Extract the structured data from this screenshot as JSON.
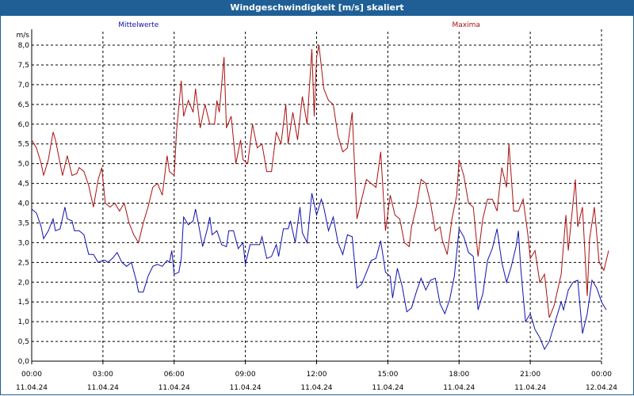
{
  "window": {
    "title": "Windgeschwindigkeit [m/s] skaliert"
  },
  "chart_data": {
    "type": "line",
    "title": "Windgeschwindigkeit [m/s] skaliert",
    "ylabel": "m/s",
    "ylim": [
      0,
      8.0
    ],
    "yticks": [
      "0,0",
      "0,5",
      "1,0",
      "1,5",
      "2,0",
      "2,5",
      "3,0",
      "3,5",
      "4,0",
      "4,5",
      "5,0",
      "5,5",
      "6,0",
      "6,5",
      "7,0",
      "7,5",
      "8,0"
    ],
    "xlim_hours": [
      0,
      24
    ],
    "xticks": [
      {
        "time": "00:00",
        "date": "11.04.24"
      },
      {
        "time": "03:00",
        "date": "11.04.24"
      },
      {
        "time": "06:00",
        "date": "11.04.24"
      },
      {
        "time": "09:00",
        "date": "11.04.24"
      },
      {
        "time": "12:00",
        "date": "11.04.24"
      },
      {
        "time": "15:00",
        "date": "11.04.24"
      },
      {
        "time": "18:00",
        "date": "11.04.24"
      },
      {
        "time": "21:00",
        "date": "11.04.24"
      },
      {
        "time": "00:00",
        "date": "12.04.24"
      }
    ],
    "grid": true,
    "legend_position": "top",
    "series": [
      {
        "name": "Mittelwerte",
        "color": "#1010b0",
        "points": [
          [
            0,
            3.85
          ],
          [
            0.2,
            3.75
          ],
          [
            0.4,
            3.4
          ],
          [
            0.5,
            3.1
          ],
          [
            0.7,
            3.3
          ],
          [
            0.9,
            3.6
          ],
          [
            1.0,
            3.3
          ],
          [
            1.2,
            3.35
          ],
          [
            1.4,
            3.9
          ],
          [
            1.5,
            3.6
          ],
          [
            1.7,
            3.55
          ],
          [
            1.8,
            3.3
          ],
          [
            2.0,
            3.3
          ],
          [
            2.2,
            3.2
          ],
          [
            2.4,
            2.7
          ],
          [
            2.6,
            2.7
          ],
          [
            2.8,
            2.5
          ],
          [
            3.0,
            2.55
          ],
          [
            3.1,
            2.55
          ],
          [
            3.2,
            2.5
          ],
          [
            3.4,
            2.6
          ],
          [
            3.6,
            2.75
          ],
          [
            3.8,
            2.5
          ],
          [
            4.0,
            2.4
          ],
          [
            4.2,
            2.5
          ],
          [
            4.4,
            2.05
          ],
          [
            4.5,
            1.75
          ],
          [
            4.7,
            1.75
          ],
          [
            4.9,
            2.15
          ],
          [
            5.1,
            2.4
          ],
          [
            5.3,
            2.45
          ],
          [
            5.5,
            2.4
          ],
          [
            5.7,
            2.55
          ],
          [
            5.8,
            2.5
          ],
          [
            5.9,
            2.8
          ],
          [
            6.0,
            2.2
          ],
          [
            6.2,
            2.25
          ],
          [
            6.3,
            2.6
          ],
          [
            6.4,
            3.65
          ],
          [
            6.6,
            3.45
          ],
          [
            6.8,
            3.55
          ],
          [
            6.9,
            3.85
          ],
          [
            7.0,
            3.55
          ],
          [
            7.2,
            2.9
          ],
          [
            7.4,
            3.35
          ],
          [
            7.5,
            3.65
          ],
          [
            7.6,
            3.2
          ],
          [
            7.8,
            3.3
          ],
          [
            8.0,
            2.95
          ],
          [
            8.2,
            2.9
          ],
          [
            8.3,
            3.3
          ],
          [
            8.5,
            3.3
          ],
          [
            8.7,
            2.85
          ],
          [
            8.9,
            3.0
          ],
          [
            9.0,
            2.45
          ],
          [
            9.2,
            2.95
          ],
          [
            9.4,
            2.95
          ],
          [
            9.6,
            2.95
          ],
          [
            9.7,
            3.15
          ],
          [
            9.9,
            2.6
          ],
          [
            10.1,
            2.65
          ],
          [
            10.3,
            2.95
          ],
          [
            10.4,
            2.65
          ],
          [
            10.6,
            3.35
          ],
          [
            10.8,
            3.35
          ],
          [
            10.9,
            3.55
          ],
          [
            11.1,
            3.0
          ],
          [
            11.3,
            3.9
          ],
          [
            11.4,
            3.25
          ],
          [
            11.6,
            3.0
          ],
          [
            11.8,
            4.25
          ],
          [
            12.0,
            3.7
          ],
          [
            12.2,
            4.1
          ],
          [
            12.3,
            3.9
          ],
          [
            12.5,
            3.3
          ],
          [
            12.7,
            3.65
          ],
          [
            12.9,
            3.0
          ],
          [
            13.1,
            2.7
          ],
          [
            13.3,
            3.2
          ],
          [
            13.5,
            3.15
          ],
          [
            13.7,
            1.85
          ],
          [
            13.9,
            1.95
          ],
          [
            14.1,
            2.25
          ],
          [
            14.3,
            2.55
          ],
          [
            14.5,
            2.6
          ],
          [
            14.7,
            3.05
          ],
          [
            14.9,
            2.25
          ],
          [
            15.1,
            2.15
          ],
          [
            15.2,
            1.6
          ],
          [
            15.4,
            2.35
          ],
          [
            15.6,
            1.9
          ],
          [
            15.8,
            1.25
          ],
          [
            16.0,
            1.35
          ],
          [
            16.2,
            1.75
          ],
          [
            16.4,
            2.1
          ],
          [
            16.6,
            1.8
          ],
          [
            16.8,
            2.05
          ],
          [
            17.0,
            2.1
          ],
          [
            17.2,
            1.45
          ],
          [
            17.4,
            1.2
          ],
          [
            17.6,
            1.55
          ],
          [
            17.8,
            2.15
          ],
          [
            18.0,
            3.35
          ],
          [
            18.2,
            3.15
          ],
          [
            18.4,
            2.75
          ],
          [
            18.6,
            2.65
          ],
          [
            18.8,
            1.3
          ],
          [
            19.0,
            1.7
          ],
          [
            19.2,
            2.55
          ],
          [
            19.4,
            2.85
          ],
          [
            19.6,
            3.35
          ],
          [
            19.8,
            2.5
          ],
          [
            20.0,
            2.0
          ],
          [
            20.2,
            2.4
          ],
          [
            20.4,
            2.9
          ],
          [
            20.5,
            3.3
          ],
          [
            20.6,
            2.35
          ],
          [
            20.8,
            1.0
          ],
          [
            21.0,
            1.2
          ],
          [
            21.2,
            0.8
          ],
          [
            21.4,
            0.6
          ],
          [
            21.6,
            0.3
          ],
          [
            21.8,
            0.5
          ],
          [
            22.0,
            0.9
          ],
          [
            22.3,
            1.5
          ],
          [
            22.4,
            1.3
          ],
          [
            22.6,
            1.8
          ],
          [
            22.8,
            2.0
          ],
          [
            23.0,
            2.05
          ],
          [
            23.2,
            0.7
          ],
          [
            23.4,
            1.2
          ],
          [
            23.6,
            2.05
          ],
          [
            23.8,
            1.85
          ],
          [
            24.0,
            1.5
          ],
          [
            24.2,
            1.3
          ]
        ]
      },
      {
        "name": "Maxima",
        "color": "#aa1010",
        "points": [
          [
            0,
            5.6
          ],
          [
            0.2,
            5.4
          ],
          [
            0.4,
            5.0
          ],
          [
            0.5,
            4.7
          ],
          [
            0.7,
            5.1
          ],
          [
            0.9,
            5.8
          ],
          [
            1.0,
            5.6
          ],
          [
            1.2,
            5.0
          ],
          [
            1.3,
            4.7
          ],
          [
            1.5,
            5.2
          ],
          [
            1.7,
            4.7
          ],
          [
            1.9,
            4.75
          ],
          [
            2.0,
            4.9
          ],
          [
            2.2,
            4.8
          ],
          [
            2.4,
            4.45
          ],
          [
            2.6,
            3.9
          ],
          [
            2.8,
            4.6
          ],
          [
            2.95,
            4.9
          ],
          [
            3.1,
            4.0
          ],
          [
            3.3,
            3.9
          ],
          [
            3.5,
            4.0
          ],
          [
            3.7,
            3.8
          ],
          [
            3.9,
            4.0
          ],
          [
            4.1,
            3.5
          ],
          [
            4.3,
            3.2
          ],
          [
            4.5,
            3.0
          ],
          [
            4.7,
            3.5
          ],
          [
            4.9,
            3.9
          ],
          [
            5.1,
            4.4
          ],
          [
            5.3,
            4.5
          ],
          [
            5.5,
            4.2
          ],
          [
            5.7,
            5.2
          ],
          [
            5.8,
            4.8
          ],
          [
            6.0,
            4.7
          ],
          [
            6.1,
            5.8
          ],
          [
            6.3,
            7.1
          ],
          [
            6.4,
            6.2
          ],
          [
            6.6,
            6.6
          ],
          [
            6.8,
            6.3
          ],
          [
            6.9,
            6.9
          ],
          [
            7.1,
            5.9
          ],
          [
            7.3,
            6.5
          ],
          [
            7.5,
            6.0
          ],
          [
            7.7,
            6.0
          ],
          [
            7.8,
            6.6
          ],
          [
            7.9,
            6.3
          ],
          [
            8.1,
            7.7
          ],
          [
            8.2,
            5.9
          ],
          [
            8.4,
            6.2
          ],
          [
            8.6,
            5.0
          ],
          [
            8.8,
            5.6
          ],
          [
            8.9,
            5.1
          ],
          [
            9.1,
            5.0
          ],
          [
            9.3,
            6.0
          ],
          [
            9.5,
            5.4
          ],
          [
            9.7,
            5.5
          ],
          [
            9.9,
            4.8
          ],
          [
            10.1,
            4.8
          ],
          [
            10.3,
            5.8
          ],
          [
            10.5,
            5.5
          ],
          [
            10.7,
            6.5
          ],
          [
            10.8,
            5.5
          ],
          [
            11.0,
            6.3
          ],
          [
            11.2,
            5.6
          ],
          [
            11.4,
            6.7
          ],
          [
            11.6,
            6.0
          ],
          [
            11.8,
            7.9
          ],
          [
            11.9,
            6.2
          ],
          [
            12.0,
            7.7
          ],
          [
            12.1,
            8.0
          ],
          [
            12.3,
            6.9
          ],
          [
            12.5,
            6.6
          ],
          [
            12.7,
            6.5
          ],
          [
            12.9,
            5.7
          ],
          [
            13.1,
            5.3
          ],
          [
            13.3,
            5.4
          ],
          [
            13.5,
            6.3
          ],
          [
            13.7,
            3.6
          ],
          [
            13.9,
            4.1
          ],
          [
            14.1,
            4.6
          ],
          [
            14.3,
            4.5
          ],
          [
            14.5,
            4.4
          ],
          [
            14.7,
            5.3
          ],
          [
            14.9,
            3.3
          ],
          [
            15.1,
            4.2
          ],
          [
            15.3,
            3.7
          ],
          [
            15.5,
            3.6
          ],
          [
            15.7,
            3.0
          ],
          [
            15.9,
            2.9
          ],
          [
            16.0,
            3.4
          ],
          [
            16.2,
            3.9
          ],
          [
            16.4,
            4.6
          ],
          [
            16.6,
            4.5
          ],
          [
            16.8,
            4.0
          ],
          [
            17.0,
            3.3
          ],
          [
            17.2,
            3.4
          ],
          [
            17.3,
            3.05
          ],
          [
            17.5,
            2.7
          ],
          [
            17.7,
            3.6
          ],
          [
            17.9,
            4.2
          ],
          [
            18.0,
            5.1
          ],
          [
            18.2,
            4.7
          ],
          [
            18.4,
            4.0
          ],
          [
            18.6,
            3.9
          ],
          [
            18.8,
            2.65
          ],
          [
            19.0,
            3.6
          ],
          [
            19.2,
            4.1
          ],
          [
            19.4,
            4.1
          ],
          [
            19.6,
            3.8
          ],
          [
            19.8,
            4.9
          ],
          [
            20.0,
            4.4
          ],
          [
            20.1,
            5.5
          ],
          [
            20.3,
            3.8
          ],
          [
            20.5,
            3.8
          ],
          [
            20.7,
            4.1
          ],
          [
            20.9,
            3.2
          ],
          [
            21.0,
            2.6
          ],
          [
            21.2,
            2.8
          ],
          [
            21.4,
            2.0
          ],
          [
            21.6,
            2.2
          ],
          [
            21.8,
            1.1
          ],
          [
            22.0,
            1.4
          ],
          [
            22.3,
            2.2
          ],
          [
            22.5,
            3.7
          ],
          [
            22.6,
            2.8
          ],
          [
            22.9,
            4.6
          ],
          [
            23.0,
            3.4
          ],
          [
            23.2,
            3.9
          ],
          [
            23.4,
            1.65
          ],
          [
            23.5,
            3.1
          ],
          [
            23.7,
            3.9
          ],
          [
            23.9,
            2.5
          ],
          [
            24.1,
            2.3
          ],
          [
            24.3,
            2.8
          ]
        ]
      }
    ]
  }
}
